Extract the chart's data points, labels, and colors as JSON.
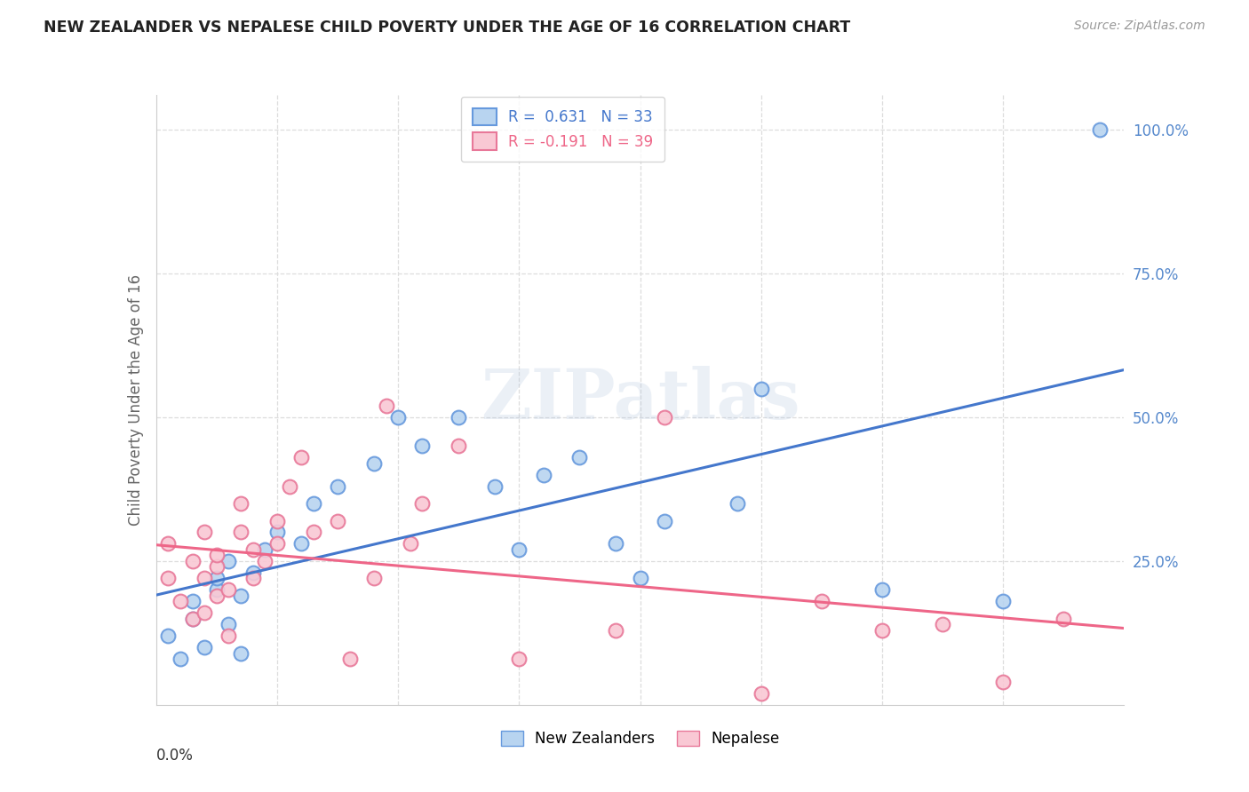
{
  "title": "NEW ZEALANDER VS NEPALESE CHILD POVERTY UNDER THE AGE OF 16 CORRELATION CHART",
  "source": "Source: ZipAtlas.com",
  "ylabel": "Child Poverty Under the Age of 16",
  "right_ytick_labels": [
    "100.0%",
    "75.0%",
    "50.0%",
    "25.0%"
  ],
  "right_ytick_values": [
    1.0,
    0.75,
    0.5,
    0.25
  ],
  "legend_nz": "R =  0.631   N = 33",
  "legend_np": "R = -0.191   N = 39",
  "nz_face_color": "#b8d4f0",
  "nz_edge_color": "#6699dd",
  "np_face_color": "#f9c8d4",
  "np_edge_color": "#e87899",
  "nz_line_color": "#4477cc",
  "np_line_color": "#ee6688",
  "right_axis_color": "#5588cc",
  "watermark": "ZIPatlas",
  "xmin": 0.0,
  "xmax": 0.08,
  "ymin": 0.0,
  "ymax": 1.06,
  "nz_x": [
    0.001,
    0.002,
    0.003,
    0.003,
    0.004,
    0.005,
    0.005,
    0.006,
    0.006,
    0.007,
    0.007,
    0.008,
    0.009,
    0.01,
    0.012,
    0.013,
    0.015,
    0.018,
    0.02,
    0.022,
    0.025,
    0.028,
    0.03,
    0.032,
    0.035,
    0.038,
    0.04,
    0.042,
    0.048,
    0.05,
    0.06,
    0.07,
    0.078
  ],
  "nz_y": [
    0.12,
    0.08,
    0.15,
    0.18,
    0.1,
    0.2,
    0.22,
    0.14,
    0.25,
    0.09,
    0.19,
    0.23,
    0.27,
    0.3,
    0.28,
    0.35,
    0.38,
    0.42,
    0.5,
    0.45,
    0.5,
    0.38,
    0.27,
    0.4,
    0.43,
    0.28,
    0.22,
    0.32,
    0.35,
    0.55,
    0.2,
    0.18,
    1.0
  ],
  "np_x": [
    0.001,
    0.001,
    0.002,
    0.003,
    0.003,
    0.004,
    0.004,
    0.004,
    0.005,
    0.005,
    0.005,
    0.006,
    0.006,
    0.007,
    0.007,
    0.008,
    0.008,
    0.009,
    0.01,
    0.01,
    0.011,
    0.012,
    0.013,
    0.015,
    0.016,
    0.018,
    0.019,
    0.021,
    0.022,
    0.025,
    0.03,
    0.038,
    0.042,
    0.05,
    0.055,
    0.06,
    0.065,
    0.07,
    0.075
  ],
  "np_y": [
    0.22,
    0.28,
    0.18,
    0.15,
    0.25,
    0.16,
    0.22,
    0.3,
    0.19,
    0.24,
    0.26,
    0.12,
    0.2,
    0.3,
    0.35,
    0.22,
    0.27,
    0.25,
    0.28,
    0.32,
    0.38,
    0.43,
    0.3,
    0.32,
    0.08,
    0.22,
    0.52,
    0.28,
    0.35,
    0.45,
    0.08,
    0.13,
    0.5,
    0.02,
    0.18,
    0.13,
    0.14,
    0.04,
    0.15
  ]
}
